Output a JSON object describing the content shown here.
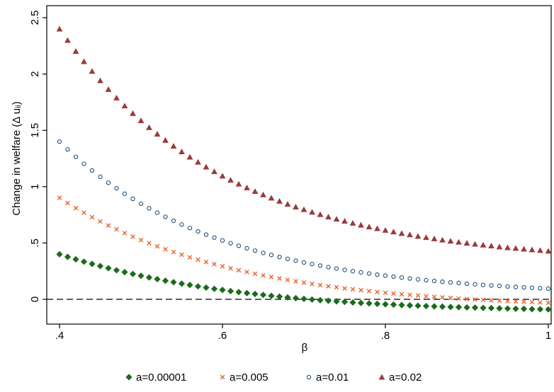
{
  "chart_data": {
    "type": "scatter",
    "title": "",
    "xlabel": "β",
    "ylabel": "Change in welfare (Δ uᵢᵢ)",
    "xlim": [
      0.4,
      1.0
    ],
    "ylim": [
      -0.15,
      2.55
    ],
    "xticks": [
      {
        "value": 0.4,
        "label": ".4"
      },
      {
        "value": 0.6,
        "label": ".6"
      },
      {
        "value": 0.8,
        "label": ".8"
      },
      {
        "value": 1.0,
        "label": "1"
      }
    ],
    "yticks": [
      {
        "value": 0,
        "label": "0"
      },
      {
        "value": 0.5,
        "label": ".5"
      },
      {
        "value": 1,
        "label": "1"
      },
      {
        "value": 1.5,
        "label": "1.5"
      },
      {
        "value": 2,
        "label": "2"
      },
      {
        "value": 2.5,
        "label": "2.5"
      }
    ],
    "reference_line": {
      "y": 0,
      "style": "dashed"
    },
    "grid": false,
    "legend_position": "bottom",
    "x": [
      0.4,
      0.41,
      0.42,
      0.43,
      0.44,
      0.45,
      0.46,
      0.47,
      0.48,
      0.49,
      0.5,
      0.51,
      0.52,
      0.53,
      0.54,
      0.55,
      0.56,
      0.57,
      0.58,
      0.59,
      0.6,
      0.61,
      0.62,
      0.63,
      0.64,
      0.65,
      0.66,
      0.67,
      0.68,
      0.69,
      0.7,
      0.71,
      0.72,
      0.73,
      0.74,
      0.75,
      0.76,
      0.77,
      0.78,
      0.79,
      0.8,
      0.81,
      0.82,
      0.83,
      0.84,
      0.85,
      0.86,
      0.87,
      0.88,
      0.89,
      0.9,
      0.91,
      0.92,
      0.93,
      0.94,
      0.95,
      0.96,
      0.97,
      0.98,
      0.99,
      1.0
    ],
    "series": [
      {
        "name": "a=0.00001",
        "marker": "diamond",
        "color": "#1a6b1a",
        "values": [
          0.4,
          0.377,
          0.355,
          0.334,
          0.314,
          0.295,
          0.276,
          0.258,
          0.241,
          0.225,
          0.209,
          0.194,
          0.179,
          0.165,
          0.152,
          0.139,
          0.127,
          0.115,
          0.104,
          0.093,
          0.083,
          0.073,
          0.064,
          0.055,
          0.047,
          0.039,
          0.031,
          0.024,
          0.017,
          0.01,
          0.004,
          -0.002,
          -0.008,
          -0.013,
          -0.018,
          -0.023,
          -0.028,
          -0.032,
          -0.036,
          -0.04,
          -0.044,
          -0.047,
          -0.051,
          -0.054,
          -0.057,
          -0.06,
          -0.063,
          -0.065,
          -0.068,
          -0.07,
          -0.072,
          -0.074,
          -0.076,
          -0.078,
          -0.08,
          -0.082,
          -0.084,
          -0.085,
          -0.087,
          -0.088,
          -0.09
        ]
      },
      {
        "name": "a=0.005",
        "marker": "x",
        "color": "#e8622a",
        "values": [
          0.9,
          0.854,
          0.81,
          0.769,
          0.729,
          0.691,
          0.655,
          0.621,
          0.588,
          0.556,
          0.526,
          0.498,
          0.47,
          0.444,
          0.42,
          0.396,
          0.373,
          0.352,
          0.331,
          0.312,
          0.293,
          0.275,
          0.258,
          0.242,
          0.227,
          0.212,
          0.198,
          0.185,
          0.172,
          0.16,
          0.148,
          0.137,
          0.126,
          0.116,
          0.107,
          0.098,
          0.089,
          0.081,
          0.073,
          0.065,
          0.058,
          0.051,
          0.045,
          0.039,
          0.033,
          0.027,
          0.022,
          0.017,
          0.012,
          0.007,
          0.003,
          -0.001,
          -0.005,
          -0.009,
          -0.012,
          -0.016,
          -0.019,
          -0.022,
          -0.025,
          -0.028,
          -0.03
        ]
      },
      {
        "name": "a=0.01",
        "marker": "circle",
        "color": "#1f4e79",
        "values": [
          1.4,
          1.331,
          1.265,
          1.203,
          1.144,
          1.088,
          1.035,
          0.985,
          0.937,
          0.892,
          0.849,
          0.808,
          0.769,
          0.732,
          0.697,
          0.664,
          0.633,
          0.603,
          0.574,
          0.548,
          0.522,
          0.498,
          0.475,
          0.453,
          0.432,
          0.412,
          0.394,
          0.376,
          0.359,
          0.343,
          0.327,
          0.313,
          0.299,
          0.286,
          0.273,
          0.261,
          0.25,
          0.239,
          0.229,
          0.219,
          0.21,
          0.201,
          0.193,
          0.185,
          0.177,
          0.17,
          0.163,
          0.156,
          0.15,
          0.144,
          0.139,
          0.133,
          0.128,
          0.123,
          0.119,
          0.114,
          0.11,
          0.106,
          0.102,
          0.099,
          0.095
        ]
      },
      {
        "name": "a=0.02",
        "marker": "triangle",
        "color": "#9b3a3a",
        "values": [
          2.4,
          2.299,
          2.202,
          2.111,
          2.024,
          1.941,
          1.863,
          1.788,
          1.717,
          1.65,
          1.586,
          1.525,
          1.467,
          1.412,
          1.36,
          1.31,
          1.263,
          1.218,
          1.175,
          1.134,
          1.095,
          1.058,
          1.023,
          0.99,
          0.958,
          0.928,
          0.899,
          0.871,
          0.845,
          0.82,
          0.797,
          0.774,
          0.753,
          0.732,
          0.712,
          0.694,
          0.676,
          0.659,
          0.643,
          0.628,
          0.613,
          0.599,
          0.585,
          0.573,
          0.56,
          0.549,
          0.538,
          0.527,
          0.517,
          0.508,
          0.499,
          0.49,
          0.482,
          0.474,
          0.466,
          0.459,
          0.453,
          0.446,
          0.44,
          0.434,
          0.428
        ]
      }
    ]
  }
}
